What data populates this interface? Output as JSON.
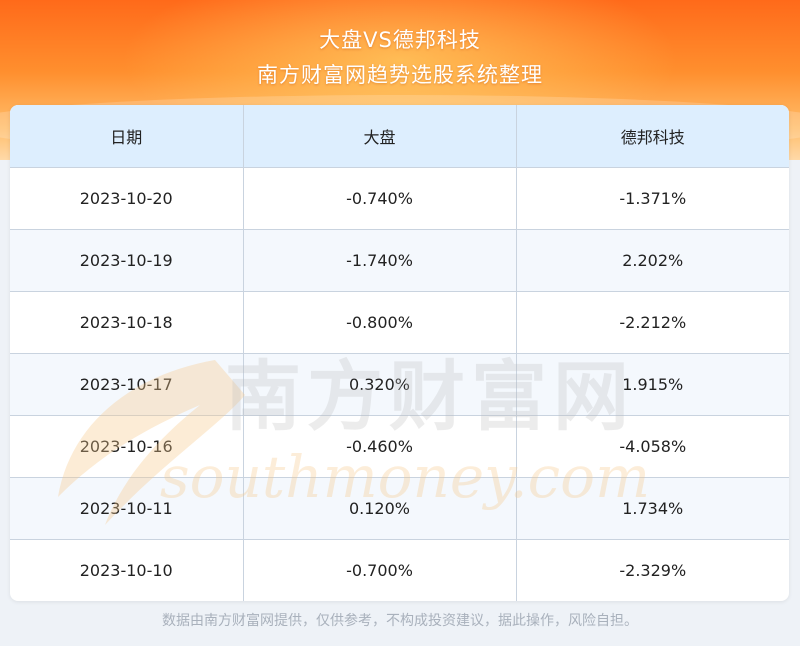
{
  "header": {
    "title": "大盘VS德邦科技",
    "subtitle": "南方财富网趋势选股系统整理"
  },
  "table": {
    "columns": [
      "日期",
      "大盘",
      "德邦科技"
    ],
    "rows": [
      [
        "2023-10-20",
        "-0.740%",
        "-1.371%"
      ],
      [
        "2023-10-19",
        "-1.740%",
        "2.202%"
      ],
      [
        "2023-10-18",
        "-0.800%",
        "-2.212%"
      ],
      [
        "2023-10-17",
        "0.320%",
        "1.915%"
      ],
      [
        "2023-10-16",
        "-0.460%",
        "-4.058%"
      ],
      [
        "2023-10-11",
        "0.120%",
        "1.734%"
      ],
      [
        "2023-10-10",
        "-0.700%",
        "-2.329%"
      ]
    ]
  },
  "watermark": {
    "cn": "南方财富网",
    "en": "southmoney.com"
  },
  "footer": {
    "disclaimer": "数据由南方财富网提供，仅供参考，不构成投资建议，据此操作，风险自担。"
  },
  "colors": {
    "header_orange": "#ff6a1a",
    "table_header_bg": "#ddeefe",
    "watermark_gray": "#bdbdbd",
    "watermark_orange": "#f7c98a"
  }
}
